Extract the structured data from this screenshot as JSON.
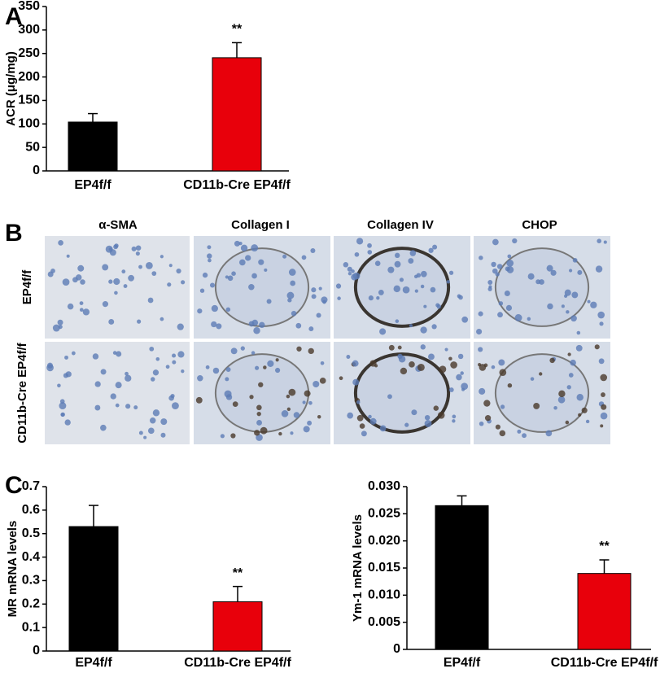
{
  "panel_labels": [
    "A",
    "B",
    "C"
  ],
  "chart_data": [
    {
      "type": "bar",
      "y_label": "ACR (μg/mg)",
      "categories": [
        "EP4f/f",
        "CD11b-Cre EP4f/f"
      ],
      "values": [
        104,
        241
      ],
      "errors": [
        18,
        32
      ],
      "significance": [
        null,
        "**"
      ],
      "colors": [
        "#000000",
        "#e8000b"
      ],
      "ylim": [
        0,
        350
      ],
      "yticks": [
        0,
        50,
        100,
        150,
        200,
        250,
        300,
        350
      ]
    },
    {
      "type": "bar",
      "y_label": "MR mRNA levels",
      "categories": [
        "EP4f/f",
        "CD11b-Cre EP4f/f"
      ],
      "values": [
        0.53,
        0.21
      ],
      "errors": [
        0.09,
        0.065
      ],
      "significance": [
        null,
        "**"
      ],
      "colors": [
        "#000000",
        "#e8000b"
      ],
      "ylim": [
        0,
        0.7
      ],
      "yticks": [
        0,
        0.1,
        0.2,
        0.3,
        0.4,
        0.5,
        0.6,
        0.7
      ]
    },
    {
      "type": "bar",
      "y_label": "Ym-1 mRNA levels",
      "categories": [
        "EP4f/f",
        "CD11b-Cre EP4f/f"
      ],
      "values": [
        0.0265,
        0.014
      ],
      "errors": [
        0.0018,
        0.0025
      ],
      "significance": [
        null,
        "**"
      ],
      "colors": [
        "#000000",
        "#e8000b"
      ],
      "ylim": [
        0,
        0.03
      ],
      "yticks": [
        0,
        0.005,
        {
          "value": 0.01,
          "label": "0.010"
        },
        0.015,
        {
          "value": 0.02,
          "label": "0.020"
        },
        0.025,
        {
          "value": 0.03,
          "label": "0.030"
        }
      ]
    }
  ],
  "images": {
    "columns": [
      "α-SMA",
      "Collagen I",
      "Collagen IV",
      "CHOP"
    ],
    "rows": [
      "EP4f/f",
      "CD11b-Cre EP4f/f"
    ]
  }
}
